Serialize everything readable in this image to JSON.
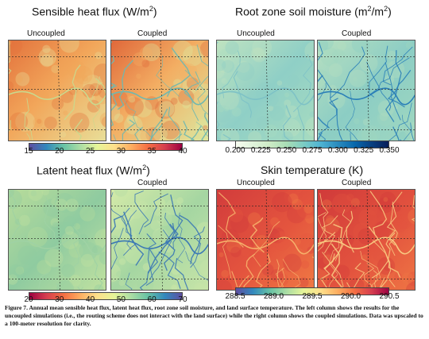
{
  "panels": [
    {
      "title_main": "Sensible heat flux (W/m",
      "title_sup": "2",
      "title_end": ")",
      "left_label": "Uncoupled",
      "right_label": "Coupled",
      "colorbar_ticks": [
        "15",
        "20",
        "25",
        "30",
        "35",
        "40"
      ],
      "colormap": [
        "#5e4fa2",
        "#3288bd",
        "#66c2a5",
        "#abdda4",
        "#e6f598",
        "#fee08b",
        "#fdae61",
        "#f46d43",
        "#d53e4f",
        "#9e0142"
      ]
    },
    {
      "title_main": "Root zone soil moisture (m",
      "title_sup": "2",
      "title_mid": "/m",
      "title_sup2": "2",
      "title_end": ")",
      "left_label": "Uncoupled",
      "right_label": "Coupled",
      "colorbar_ticks": [
        "0.200",
        "0.225",
        "0.250",
        "0.275",
        "0.300",
        "0.325",
        "0.350"
      ],
      "colormap": [
        "#f7fcf0",
        "#e0f3db",
        "#ccebc5",
        "#a8ddb5",
        "#7bccc4",
        "#4eb3d3",
        "#2b8cbe",
        "#0868ac",
        "#084081",
        "#081d58"
      ]
    },
    {
      "title_main": "Latent heat flux (W/m",
      "title_sup": "2",
      "title_end": ")",
      "left_label": "",
      "right_label": "Coupled",
      "colorbar_ticks": [
        "20",
        "30",
        "40",
        "50",
        "60",
        "70"
      ],
      "colormap": [
        "#9e0142",
        "#d53e4f",
        "#f46d43",
        "#fdae61",
        "#fee08b",
        "#e6f598",
        "#abdda4",
        "#66c2a5",
        "#3288bd",
        "#5e4fa2"
      ]
    },
    {
      "title_main": "Skin temperature (K)",
      "title_sup": "",
      "title_end": "",
      "left_label": "Uncoupled",
      "right_label": "Coupled",
      "colorbar_ticks": [
        "288.5",
        "289.0",
        "289.5",
        "290.0",
        "290.5"
      ],
      "colormap": [
        "#5e4fa2",
        "#3288bd",
        "#66c2a5",
        "#abdda4",
        "#e6f598",
        "#fee08b",
        "#fdae61",
        "#f46d43",
        "#d53e4f",
        "#9e0142"
      ]
    }
  ],
  "caption": "Figure 7. Annual mean sensible heat flux, latent heat flux, root zone soil moisture, and land surface temperature. The left column shows the results for the uncoupled simulations (i.e., the routing scheme does not interact with the land surface) while the right column shows the coupled simulations. Data was upscaled to a 100-meter resolution for clarity."
}
